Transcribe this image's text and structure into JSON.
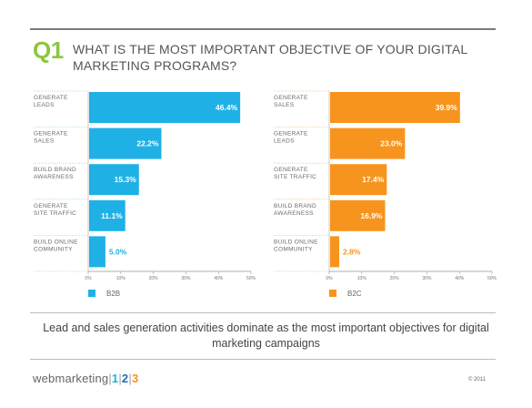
{
  "header": {
    "question_number": "Q1",
    "question_text": "WHAT IS THE MOST IMPORTANT OBJECTIVE OF YOUR DIGITAL MARKETING PROGRAMS?"
  },
  "chart_data": [
    {
      "type": "bar",
      "orientation": "horizontal",
      "categories": [
        [
          "GENERATE",
          "LEADS"
        ],
        [
          "GENERATE",
          "SALES"
        ],
        [
          "BUILD BRAND",
          "AWARENESS"
        ],
        [
          "GENERATE",
          "SITE TRAFFIC"
        ],
        [
          "BUILD ONLINE",
          "COMMUNITY"
        ]
      ],
      "series": [
        {
          "name": "B2B",
          "values": [
            46.4,
            22.2,
            15.3,
            11.1,
            5.0
          ]
        }
      ],
      "value_labels": [
        "46.4%",
        "22.2%",
        "15.3%",
        "11.1%",
        "5.0%"
      ],
      "xlim": [
        0,
        50
      ],
      "xticks": [
        "0%",
        "10%",
        "20%",
        "30%",
        "40%",
        "50%"
      ],
      "color": "#1fb1e6",
      "legend_position": "bottom-left"
    },
    {
      "type": "bar",
      "orientation": "horizontal",
      "categories": [
        [
          "GENERATE",
          "SALES"
        ],
        [
          "GENERATE",
          "LEADS"
        ],
        [
          "GENERATE",
          "SITE TRAFFIC"
        ],
        [
          "BUILD BRAND",
          "AWARENESS"
        ],
        [
          "BUILD ONLINE",
          "COMMUNITY"
        ]
      ],
      "series": [
        {
          "name": "B2C",
          "values": [
            39.9,
            23.0,
            17.4,
            16.9,
            2.8
          ]
        }
      ],
      "value_labels": [
        "39.9%",
        "23.0%",
        "17.4%",
        "16.9%",
        "2.8%"
      ],
      "xlim": [
        0,
        50
      ],
      "xticks": [
        "0%",
        "10%",
        "20%",
        "30%",
        "40%",
        "50%"
      ],
      "color": "#f7941d",
      "legend_position": "bottom-left"
    }
  ],
  "summary": "Lead and sales generation activities dominate as the most important objectives for digital marketing campaigns",
  "footer": {
    "brand_name": "webmarketing",
    "brand_sep": "|",
    "brand_n1": "1",
    "brand_n2": "2",
    "brand_n3": "3",
    "copyright": "© 2011"
  }
}
